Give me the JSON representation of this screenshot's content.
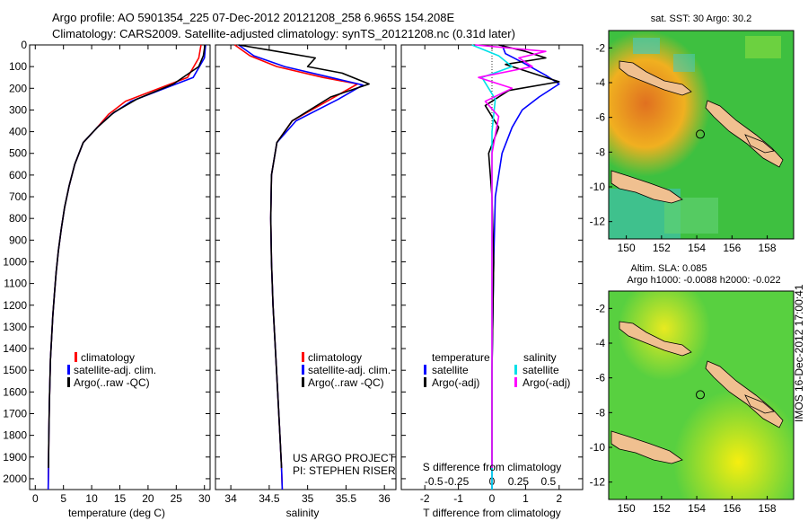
{
  "header": {
    "line1": "Argo profile: AO 5901354_225 07-Dec-2012 20121208_258 6.965S 154.208E",
    "line2": "Climatology: CARS2009. Satellite-adjusted climatology: synTS_20121208.nc (0.31d later)"
  },
  "side_label": "IMOS 16-Dec-2012 17:00:41",
  "colors": {
    "red": "#ff0000",
    "blue": "#0000ff",
    "black": "#000000",
    "cyan": "#00e0e8",
    "magenta": "#ff00ff"
  },
  "chart_data": [
    {
      "id": "temperature",
      "type": "line",
      "xlabel": "temperature (deg C)",
      "xlim": [
        -1,
        31
      ],
      "ylim": [
        2050,
        0
      ],
      "xticks": [
        0,
        5,
        10,
        15,
        20,
        25,
        30
      ],
      "yticks": [
        0,
        100,
        200,
        300,
        400,
        500,
        600,
        700,
        800,
        900,
        1000,
        1100,
        1200,
        1300,
        1400,
        1500,
        1600,
        1700,
        1800,
        1900,
        2000
      ],
      "legend": [
        "climatology",
        "satellite-adj. clim.",
        "Argo(..raw -QC)"
      ],
      "series": [
        {
          "name": "climatology",
          "color": "red",
          "x": [
            29.4,
            29.0,
            27.0,
            22.0,
            16.0,
            13.0,
            11.0,
            8.5,
            7.0,
            6.0,
            5.2,
            4.6,
            4.1,
            3.7,
            3.4,
            3.1,
            2.9,
            2.7,
            2.6,
            2.5,
            2.4,
            2.35,
            2.3
          ],
          "y": [
            0,
            60,
            150,
            200,
            260,
            320,
            380,
            450,
            550,
            650,
            750,
            850,
            950,
            1050,
            1150,
            1250,
            1350,
            1450,
            1550,
            1650,
            1800,
            1950,
            2050
          ]
        },
        {
          "name": "satellite-adj. clim.",
          "color": "blue",
          "x": [
            30.2,
            30.0,
            28.0,
            23.0,
            17.0,
            13.5,
            11.0,
            8.5,
            7.0,
            6.0,
            5.2,
            4.6,
            4.1,
            3.7,
            3.4,
            3.1,
            2.9,
            2.7,
            2.6,
            2.5,
            2.4,
            2.35,
            2.3
          ],
          "y": [
            0,
            60,
            150,
            200,
            260,
            320,
            380,
            450,
            550,
            650,
            750,
            850,
            950,
            1050,
            1150,
            1250,
            1350,
            1450,
            1550,
            1650,
            1800,
            1950,
            2050
          ]
        },
        {
          "name": "Argo(..raw -QC)",
          "color": "black",
          "x": [
            30.1,
            29.8,
            29.0,
            24.5,
            18.0,
            14.0,
            11.0,
            8.5,
            7.0,
            6.0,
            5.2,
            4.6,
            4.1,
            3.7,
            3.4,
            3.1,
            2.9,
            2.7,
            2.6,
            2.5,
            2.4,
            2.35
          ],
          "y": [
            0,
            50,
            100,
            180,
            250,
            310,
            380,
            450,
            550,
            650,
            750,
            850,
            950,
            1050,
            1150,
            1250,
            1350,
            1450,
            1550,
            1650,
            1800,
            1950
          ]
        }
      ]
    },
    {
      "id": "salinity",
      "type": "line",
      "xlabel": "salinity",
      "xlim": [
        33.8,
        36.15
      ],
      "ylim": [
        2050,
        0
      ],
      "xticks": [
        34,
        34.5,
        35,
        35.5,
        36
      ],
      "legend": [
        "climatology",
        "satellite-adj. clim.",
        "Argo(..raw -QC)"
      ],
      "annotation": [
        "US ARGO PROJECT",
        "PI: STEPHEN RISER"
      ],
      "series": [
        {
          "name": "climatology",
          "color": "red",
          "x": [
            34.05,
            34.25,
            34.6,
            35.2,
            35.65,
            35.3,
            34.8,
            34.6,
            34.53,
            34.52,
            34.53,
            34.55,
            34.58,
            34.61,
            34.64,
            34.66,
            34.67
          ],
          "y": [
            0,
            50,
            100,
            150,
            180,
            250,
            350,
            450,
            600,
            800,
            1000,
            1200,
            1400,
            1600,
            1800,
            1950,
            2050
          ]
        },
        {
          "name": "satellite-adj. clim.",
          "color": "blue",
          "x": [
            34.1,
            34.3,
            34.7,
            35.3,
            35.72,
            35.4,
            34.85,
            34.6,
            34.53,
            34.52,
            34.53,
            34.55,
            34.58,
            34.61,
            34.64,
            34.66,
            34.67
          ],
          "y": [
            0,
            50,
            100,
            150,
            185,
            250,
            350,
            450,
            600,
            800,
            1000,
            1200,
            1400,
            1600,
            1800,
            1950,
            2050
          ]
        },
        {
          "name": "Argo(..raw -QC)",
          "color": "black",
          "x": [
            34.1,
            34.6,
            35.1,
            35.0,
            35.45,
            35.8,
            35.3,
            34.8,
            34.6,
            34.53,
            34.52,
            34.53,
            34.55,
            34.58,
            34.61,
            34.64,
            34.66
          ],
          "y": [
            0,
            30,
            60,
            100,
            130,
            180,
            240,
            350,
            450,
            600,
            800,
            1000,
            1200,
            1400,
            1600,
            1800,
            1950
          ]
        }
      ]
    },
    {
      "id": "difference",
      "type": "line",
      "xlabel": "T difference from climatology",
      "top_label": "S difference from climatology",
      "xlim": [
        -2.7,
        2.7
      ],
      "ylim": [
        2050,
        0
      ],
      "xticks": [
        -2,
        -1,
        0,
        1,
        2
      ],
      "s_ticks": [
        "-0.5",
        "-0.25",
        "0",
        "0.25",
        "0.5"
      ],
      "legend_groups": [
        {
          "title": "temperature",
          "items": [
            "satellite",
            "Argo(-adj)"
          ]
        },
        {
          "title": "salinity",
          "items": [
            "satellite",
            "Argo(-adj)"
          ]
        }
      ],
      "series": [
        {
          "name": "temperature satellite",
          "color": "blue",
          "x": [
            0.3,
            0.4,
            0.9,
            1.6,
            2.0,
            1.4,
            0.9,
            0.6,
            0.3,
            0.1,
            0.05,
            0.0,
            0.0
          ],
          "y": [
            0,
            40,
            80,
            140,
            180,
            240,
            300,
            380,
            500,
            700,
            1000,
            1500,
            2050
          ]
        },
        {
          "name": "temperature Argo(-adj)",
          "color": "black",
          "x": [
            0.2,
            1.0,
            1.6,
            0.4,
            1.2,
            2.0,
            0.5,
            -0.2,
            0.2,
            -0.1,
            0.0,
            0.05,
            0.0,
            0.0
          ],
          "y": [
            0,
            30,
            60,
            90,
            130,
            170,
            210,
            280,
            380,
            500,
            700,
            1000,
            1500,
            1950
          ]
        },
        {
          "name": "salinity satellite",
          "color": "cyan",
          "x": [
            -0.6,
            0.2,
            0.6,
            -0.3,
            0.1,
            0.0,
            0.0,
            0.0
          ],
          "y": [
            0,
            50,
            100,
            150,
            250,
            400,
            800,
            2050
          ]
        },
        {
          "name": "salinity Argo(-adj)",
          "color": "magenta",
          "x": [
            -0.5,
            1.6,
            0.8,
            1.2,
            -0.4,
            0.6,
            -0.2,
            0.2,
            0.0,
            0.0
          ],
          "y": [
            0,
            30,
            60,
            100,
            150,
            200,
            260,
            330,
            500,
            1950
          ]
        }
      ]
    },
    {
      "id": "sst_map",
      "type": "heatmap",
      "title": "sat. SST: 30  Argo: 30.2",
      "xlim": [
        149,
        159.5
      ],
      "ylim": [
        -13,
        -1
      ],
      "xticks": [
        150,
        152,
        154,
        156,
        158
      ],
      "yticks": [
        -2,
        -4,
        -6,
        -8,
        -10,
        -12
      ],
      "marker": {
        "x": 154.2,
        "y": -6.97
      }
    },
    {
      "id": "sla_map",
      "type": "heatmap",
      "title": "Altim. SLA: 0.085",
      "subtitle": "Argo h1000: -0.0088  h2000: -0.022",
      "xlim": [
        149,
        159.5
      ],
      "ylim": [
        -13,
        -1
      ],
      "xticks": [
        150,
        152,
        154,
        156,
        158
      ],
      "yticks": [
        -2,
        -4,
        -6,
        -8,
        -10,
        -12
      ],
      "marker": {
        "x": 154.2,
        "y": -6.97
      }
    }
  ]
}
